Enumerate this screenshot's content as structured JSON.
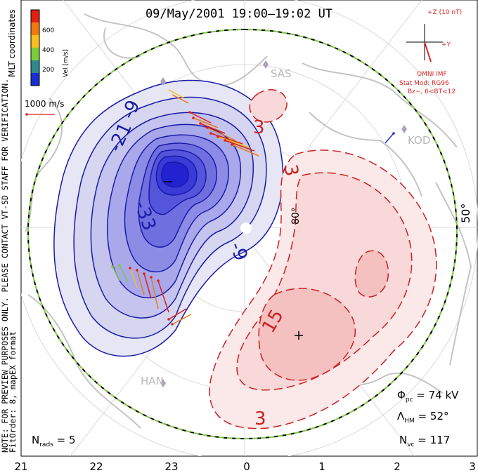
{
  "header": {
    "title": "09/May/2001 19:00–19:02 UT"
  },
  "side_note": {
    "line1": "NOTE: FOR PREVIEW PURPOSES ONLY. PLEASE CONTACT VT-SD STAFF FOR VERIFICATION.",
    "line2": "FitOrder: 8, mapEX format",
    "coords": "MLT coordinates"
  },
  "colorbar": {
    "unit": "Vel [m/s]",
    "ticks": [
      "600",
      "400",
      "200"
    ],
    "colors": [
      "#1a2fd0",
      "#2f8a8a",
      "#7ccc3a",
      "#f5c020",
      "#f07a10",
      "#e02010"
    ]
  },
  "scale_vector": {
    "label": "1000 m/s",
    "color": "#dd2222"
  },
  "imf": {
    "axis_z": "+Z (10 nT)",
    "axis_y": "+Y",
    "source": "OMNI IMF",
    "model": "Stat Mod: RG96",
    "condition": "Bz−, 6<BT<12",
    "color": "#dd2222"
  },
  "stats": {
    "phi_pc": "74 kV",
    "lambda_hm": "52°",
    "n_vc": "117",
    "n_rads": "5"
  },
  "stat_labels": {
    "phi": "Φ",
    "phi_sub": "pc",
    "lambda": "Λ",
    "lambda_sub": "HM",
    "nvc": "N",
    "nvc_sub": "vc",
    "nrads": "N",
    "nrads_sub": "rads"
  },
  "radars": [
    "SAS",
    "KOD",
    "HAN"
  ],
  "lat_labels": [
    "80°",
    "50°"
  ],
  "contours": {
    "neg_labels": [
      "-21",
      "-9",
      "-33",
      "-9"
    ],
    "pos_labels": [
      "3",
      "3",
      "15",
      "3"
    ],
    "neg_color": "#1a1aa8",
    "pos_color": "#cc2020"
  },
  "mlt_ticks": [
    "21",
    "22",
    "23",
    "0",
    "1",
    "2",
    "3"
  ]
}
